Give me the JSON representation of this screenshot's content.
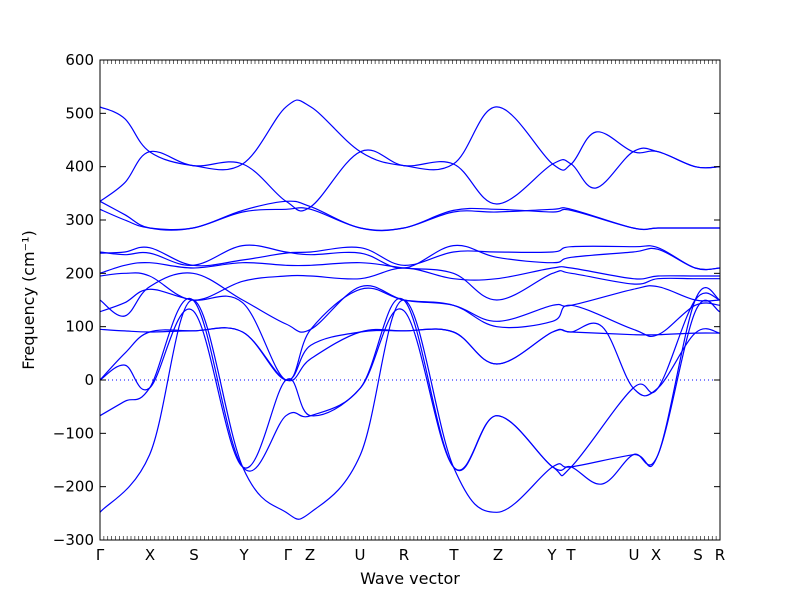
{
  "chart_data": {
    "type": "line",
    "title": "",
    "xlabel": "Wave vector",
    "ylabel": "Frequency (cm⁻¹)",
    "ylim": [
      -300,
      600
    ],
    "yticks": [
      -300,
      -200,
      -100,
      0,
      100,
      200,
      300,
      400,
      500,
      600
    ],
    "ytick_labels": [
      "−300",
      "−200",
      "−100",
      "0",
      "100",
      "200",
      "300",
      "400",
      "500",
      "600"
    ],
    "high_symmetry_points": [
      {
        "label": "Γ",
        "x": 0.0
      },
      {
        "label": "X",
        "x": 0.0806
      },
      {
        "label": "S",
        "x": 0.1516
      },
      {
        "label": "Y",
        "x": 0.2323
      },
      {
        "label": "Γ",
        "x": 0.3032
      },
      {
        "label": "Z",
        "x": 0.3387
      },
      {
        "label": "U",
        "x": 0.4194
      },
      {
        "label": "R",
        "x": 0.4903
      },
      {
        "label": "T",
        "x": 0.571
      },
      {
        "label": "Z",
        "x": 0.6419
      },
      {
        "label": "Y",
        "x": 0.729
      },
      {
        "label": "T",
        "x": 0.7597
      },
      {
        "label": "U",
        "x": 0.8613
      },
      {
        "label": "X",
        "x": 0.8968
      },
      {
        "label": "S",
        "x": 0.9645
      },
      {
        "label": "R",
        "x": 1.0
      }
    ],
    "zero_line": true,
    "line_color": "#0000ff",
    "series": [
      {
        "x": [
          0.0,
          0.08,
          0.15,
          0.23,
          0.3,
          0.34,
          0.42,
          0.49,
          0.57,
          0.64,
          0.73,
          0.76,
          0.86,
          0.9,
          0.96,
          1.0
        ],
        "y": [
          -248,
          -140,
          150,
          -163,
          -248,
          -248,
          -140,
          150,
          -163,
          -248,
          -163,
          -163,
          -140,
          -140,
          150,
          150
        ]
      },
      {
        "x": [
          0.0,
          0.04,
          0.08,
          0.15,
          0.23,
          0.3,
          0.34,
          0.42,
          0.49,
          0.57,
          0.64,
          0.73,
          0.76,
          0.86,
          0.9,
          0.96,
          1.0
        ],
        "y": [
          -67,
          -40,
          -15,
          150,
          -163,
          -67,
          -67,
          -15,
          150,
          -163,
          -67,
          -163,
          -163,
          -15,
          -15,
          150,
          150
        ]
      },
      {
        "x": [
          0.0,
          0.04,
          0.08,
          0.15,
          0.23,
          0.3,
          0.34,
          0.42,
          0.49,
          0.57,
          0.64,
          0.73,
          0.76,
          0.81,
          0.86,
          0.9,
          0.96,
          1.0
        ],
        "y": [
          0,
          28,
          -15,
          130,
          -163,
          0,
          -67,
          -15,
          130,
          -163,
          -67,
          -163,
          -163,
          -195,
          -140,
          -140,
          128,
          128
        ]
      },
      {
        "x": [
          0.0,
          0.04,
          0.08,
          0.15,
          0.23,
          0.3,
          0.34,
          0.42,
          0.49,
          0.57,
          0.64,
          0.73,
          0.76,
          0.81,
          0.86,
          0.9,
          0.96,
          1.0
        ],
        "y": [
          0,
          50,
          90,
          92,
          90,
          0,
          65,
          90,
          92,
          90,
          30,
          90,
          90,
          100,
          -15,
          -15,
          88,
          88
        ]
      },
      {
        "x": [
          0.0,
          0.04,
          0.08,
          0.15,
          0.23,
          0.3,
          0.34,
          0.42,
          0.49,
          0.57,
          0.64,
          0.73,
          0.76,
          0.86,
          0.9,
          0.96,
          1.0
        ],
        "y": [
          95,
          92,
          90,
          92,
          90,
          0,
          40,
          90,
          92,
          90,
          30,
          90,
          90,
          85,
          85,
          88,
          88
        ]
      },
      {
        "x": [
          0.0,
          0.04,
          0.08,
          0.15,
          0.23,
          0.3,
          0.34,
          0.42,
          0.49,
          0.57,
          0.64,
          0.73,
          0.76,
          0.86,
          0.9,
          0.96,
          1.0
        ],
        "y": [
          128,
          145,
          170,
          150,
          145,
          0,
          95,
          170,
          150,
          140,
          100,
          110,
          140,
          95,
          85,
          140,
          140
        ]
      },
      {
        "x": [
          0.0,
          0.04,
          0.08,
          0.15,
          0.23,
          0.3,
          0.34,
          0.42,
          0.49,
          0.57,
          0.64,
          0.73,
          0.76,
          0.86,
          0.9,
          0.96,
          1.0
        ],
        "y": [
          150,
          120,
          175,
          200,
          150,
          105,
          95,
          175,
          150,
          140,
          110,
          140,
          140,
          170,
          175,
          150,
          150
        ]
      },
      {
        "x": [
          0.0,
          0.04,
          0.08,
          0.15,
          0.23,
          0.3,
          0.34,
          0.42,
          0.49,
          0.57,
          0.64,
          0.73,
          0.76,
          0.86,
          0.9,
          0.96,
          1.0
        ],
        "y": [
          195,
          200,
          195,
          150,
          185,
          195,
          195,
          190,
          210,
          190,
          190,
          210,
          210,
          190,
          195,
          195,
          195
        ]
      },
      {
        "x": [
          0.0,
          0.04,
          0.08,
          0.15,
          0.23,
          0.3,
          0.34,
          0.42,
          0.49,
          0.57,
          0.64,
          0.73,
          0.76,
          0.86,
          0.9,
          0.96,
          1.0
        ],
        "y": [
          200,
          215,
          220,
          210,
          220,
          215,
          215,
          220,
          210,
          200,
          150,
          200,
          200,
          180,
          190,
          190,
          190
        ]
      },
      {
        "x": [
          0.0,
          0.04,
          0.08,
          0.15,
          0.23,
          0.3,
          0.34,
          0.42,
          0.49,
          0.57,
          0.64,
          0.73,
          0.76,
          0.86,
          0.9,
          0.96,
          1.0
        ],
        "y": [
          238,
          240,
          248,
          215,
          225,
          238,
          240,
          248,
          215,
          240,
          240,
          240,
          250,
          250,
          248,
          210,
          210
        ]
      },
      {
        "x": [
          0.0,
          0.04,
          0.08,
          0.15,
          0.23,
          0.3,
          0.34,
          0.42,
          0.49,
          0.57,
          0.64,
          0.73,
          0.76,
          0.86,
          0.9,
          0.96,
          1.0
        ],
        "y": [
          240,
          235,
          238,
          215,
          252,
          240,
          235,
          238,
          210,
          252,
          230,
          220,
          230,
          240,
          245,
          210,
          210
        ]
      },
      {
        "x": [
          0.0,
          0.04,
          0.08,
          0.15,
          0.23,
          0.3,
          0.34,
          0.42,
          0.49,
          0.57,
          0.64,
          0.73,
          0.76,
          0.86,
          0.9,
          0.96,
          1.0
        ],
        "y": [
          320,
          300,
          285,
          285,
          315,
          320,
          320,
          285,
          285,
          315,
          315,
          320,
          320,
          285,
          285,
          285,
          285
        ]
      },
      {
        "x": [
          0.0,
          0.04,
          0.08,
          0.15,
          0.23,
          0.3,
          0.34,
          0.42,
          0.49,
          0.57,
          0.64,
          0.73,
          0.76,
          0.86,
          0.9,
          0.96,
          1.0
        ],
        "y": [
          335,
          310,
          285,
          285,
          318,
          335,
          325,
          285,
          285,
          318,
          320,
          315,
          318,
          285,
          285,
          285,
          285
        ]
      },
      {
        "x": [
          0.0,
          0.04,
          0.08,
          0.15,
          0.23,
          0.3,
          0.34,
          0.42,
          0.49,
          0.57,
          0.64,
          0.73,
          0.76,
          0.8,
          0.86,
          0.9,
          0.96,
          1.0
        ],
        "y": [
          335,
          370,
          428,
          402,
          405,
          512,
          512,
          428,
          402,
          405,
          330,
          405,
          405,
          360,
          428,
          428,
          400,
          400
        ]
      },
      {
        "x": [
          0.0,
          0.04,
          0.08,
          0.15,
          0.23,
          0.3,
          0.34,
          0.42,
          0.49,
          0.57,
          0.64,
          0.73,
          0.76,
          0.8,
          0.86,
          0.9,
          0.96,
          1.0
        ],
        "y": [
          512,
          490,
          428,
          402,
          405,
          335,
          325,
          428,
          402,
          405,
          512,
          405,
          405,
          465,
          428,
          428,
          400,
          400
        ]
      }
    ]
  }
}
